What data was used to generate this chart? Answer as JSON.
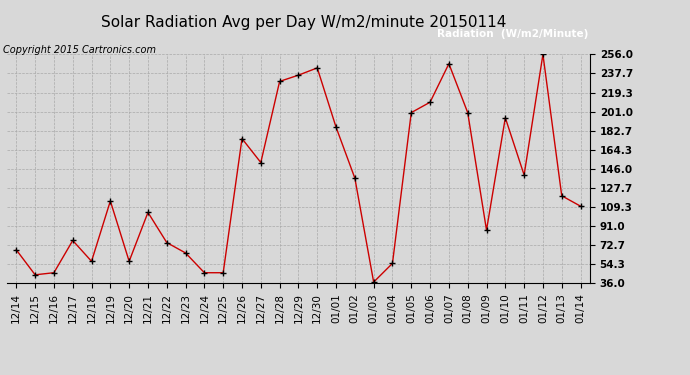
{
  "title": "Solar Radiation Avg per Day W/m2/minute 20150114",
  "copyright": "Copyright 2015 Cartronics.com",
  "legend_label": "Radiation  (W/m2/Minute)",
  "x_labels": [
    "12/14",
    "12/15",
    "12/16",
    "12/17",
    "12/18",
    "12/19",
    "12/20",
    "12/21",
    "12/22",
    "12/23",
    "12/24",
    "12/25",
    "12/26",
    "12/27",
    "12/28",
    "12/29",
    "12/30",
    "01/01",
    "01/02",
    "01/03",
    "01/04",
    "01/05",
    "01/06",
    "01/07",
    "01/08",
    "01/09",
    "01/10",
    "01/11",
    "01/12",
    "01/13",
    "01/14"
  ],
  "y_values": [
    68,
    44,
    46,
    77,
    57,
    115,
    57,
    104,
    75,
    65,
    46,
    46,
    175,
    152,
    230,
    236,
    243,
    186,
    137,
    37,
    55,
    200,
    210,
    247,
    200,
    87,
    195,
    140,
    256,
    120,
    110
  ],
  "y_ticks": [
    36.0,
    54.3,
    72.7,
    91.0,
    109.3,
    127.7,
    146.0,
    164.3,
    182.7,
    201.0,
    219.3,
    237.7,
    256.0
  ],
  "y_min": 36.0,
  "y_max": 256.0,
  "line_color": "#cc0000",
  "marker_color": "#000000",
  "bg_color": "#d8d8d8",
  "grid_color": "#aaaaaa",
  "legend_bg": "#cc0000",
  "legend_text_color": "#ffffff",
  "title_fontsize": 11,
  "copyright_fontsize": 7,
  "tick_fontsize": 7.5,
  "legend_fontsize": 7.5
}
